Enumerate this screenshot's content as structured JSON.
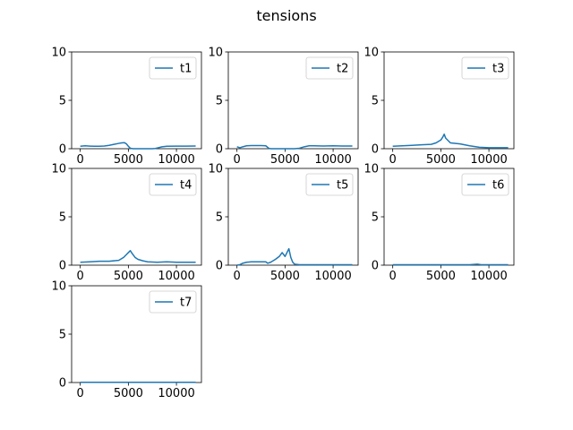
{
  "figure": {
    "title": "tensions"
  },
  "chart_data": [
    {
      "type": "line",
      "title": "",
      "xlabel": "",
      "ylabel": "",
      "xlim": [
        -900,
        12600
      ],
      "ylim": [
        0,
        10
      ],
      "xticks": [
        0,
        5000,
        10000
      ],
      "yticks": [
        0,
        5,
        10
      ],
      "legend": "top-right",
      "grid": false,
      "color": "#1f77b4",
      "series": [
        {
          "name": "t1",
          "x": [
            0,
            500,
            1000,
            1500,
            2000,
            2500,
            3000,
            3500,
            4000,
            4300,
            4600,
            4800,
            5000,
            5200,
            5500,
            6000,
            6500,
            7000,
            7500,
            7800,
            8100,
            8500,
            9000,
            10000,
            11000,
            12000
          ],
          "y": [
            0.25,
            0.3,
            0.27,
            0.25,
            0.25,
            0.28,
            0.35,
            0.45,
            0.55,
            0.6,
            0.62,
            0.5,
            0.25,
            0.05,
            0.0,
            0.0,
            0.0,
            0.0,
            0.0,
            0.02,
            0.1,
            0.2,
            0.25,
            0.27,
            0.27,
            0.28
          ]
        }
      ]
    },
    {
      "type": "line",
      "title": "",
      "xlabel": "",
      "ylabel": "",
      "xlim": [
        -900,
        12600
      ],
      "ylim": [
        0,
        10
      ],
      "xticks": [
        0,
        5000,
        10000
      ],
      "yticks": [
        0,
        5,
        10
      ],
      "legend": "top-right",
      "grid": false,
      "color": "#1f77b4",
      "series": [
        {
          "name": "t2",
          "x": [
            0,
            300,
            600,
            1000,
            1500,
            2000,
            2500,
            3000,
            3300,
            3500,
            4000,
            5000,
            6000,
            6500,
            7000,
            7500,
            8000,
            9000,
            10000,
            11000,
            12000
          ],
          "y": [
            0.2,
            0.1,
            0.2,
            0.3,
            0.32,
            0.33,
            0.33,
            0.3,
            0.05,
            0.0,
            0.0,
            0.0,
            0.0,
            0.05,
            0.2,
            0.3,
            0.3,
            0.28,
            0.3,
            0.28,
            0.28
          ]
        }
      ]
    },
    {
      "type": "line",
      "title": "",
      "xlabel": "",
      "ylabel": "",
      "xlim": [
        -900,
        12600
      ],
      "ylim": [
        0,
        10
      ],
      "xticks": [
        0,
        5000,
        10000
      ],
      "yticks": [
        0,
        5,
        10
      ],
      "legend": "top-right",
      "grid": false,
      "color": "#1f77b4",
      "series": [
        {
          "name": "t3",
          "x": [
            0,
            1000,
            2000,
            3000,
            4000,
            4500,
            5000,
            5200,
            5350,
            5500,
            5800,
            6000,
            7000,
            8000,
            9000,
            10000,
            11000,
            12000
          ],
          "y": [
            0.25,
            0.3,
            0.35,
            0.4,
            0.45,
            0.6,
            0.9,
            1.2,
            1.5,
            1.1,
            0.8,
            0.6,
            0.5,
            0.3,
            0.15,
            0.1,
            0.1,
            0.1
          ]
        }
      ]
    },
    {
      "type": "line",
      "title": "",
      "xlabel": "",
      "ylabel": "",
      "xlim": [
        -900,
        12600
      ],
      "ylim": [
        0,
        10
      ],
      "xticks": [
        0,
        5000,
        10000
      ],
      "yticks": [
        0,
        5,
        10
      ],
      "legend": "top-right",
      "grid": false,
      "color": "#1f77b4",
      "series": [
        {
          "name": "t4",
          "x": [
            0,
            1000,
            2000,
            3000,
            4000,
            4500,
            4800,
            5000,
            5200,
            5400,
            5700,
            6000,
            6500,
            7000,
            8000,
            9000,
            10000,
            11000,
            12000
          ],
          "y": [
            0.3,
            0.35,
            0.4,
            0.4,
            0.5,
            0.8,
            1.1,
            1.3,
            1.5,
            1.2,
            0.8,
            0.6,
            0.45,
            0.35,
            0.3,
            0.35,
            0.3,
            0.3,
            0.3
          ]
        }
      ]
    },
    {
      "type": "line",
      "title": "",
      "xlabel": "",
      "ylabel": "",
      "xlim": [
        -900,
        12600
      ],
      "ylim": [
        0,
        10
      ],
      "xticks": [
        0,
        5000,
        10000
      ],
      "yticks": [
        0,
        5,
        10
      ],
      "legend": "top-right",
      "grid": false,
      "color": "#1f77b4",
      "series": [
        {
          "name": "t5",
          "x": [
            0,
            300,
            600,
            1000,
            1500,
            2000,
            2500,
            3000,
            3200,
            3500,
            4000,
            4400,
            4700,
            5000,
            5200,
            5400,
            5600,
            5800,
            6000,
            6500,
            7000,
            8000,
            9000,
            10000,
            11000,
            12000
          ],
          "y": [
            0.0,
            0.05,
            0.2,
            0.3,
            0.35,
            0.35,
            0.35,
            0.35,
            0.2,
            0.3,
            0.6,
            0.9,
            1.3,
            0.9,
            1.3,
            1.7,
            0.8,
            0.3,
            0.1,
            0.05,
            0.05,
            0.05,
            0.05,
            0.05,
            0.05,
            0.05
          ]
        }
      ]
    },
    {
      "type": "line",
      "title": "",
      "xlabel": "",
      "ylabel": "",
      "xlim": [
        -900,
        12600
      ],
      "ylim": [
        0,
        10
      ],
      "xticks": [
        0,
        5000,
        10000
      ],
      "yticks": [
        0,
        5,
        10
      ],
      "legend": "top-right",
      "grid": false,
      "color": "#1f77b4",
      "series": [
        {
          "name": "t6",
          "x": [
            0,
            2000,
            4000,
            6000,
            8000,
            8800,
            9200,
            10000,
            12000
          ],
          "y": [
            0.05,
            0.05,
            0.05,
            0.05,
            0.05,
            0.1,
            0.05,
            0.05,
            0.05
          ]
        }
      ]
    },
    {
      "type": "line",
      "title": "",
      "xlabel": "",
      "ylabel": "",
      "xlim": [
        -900,
        12600
      ],
      "ylim": [
        0,
        10
      ],
      "xticks": [
        0,
        5000,
        10000
      ],
      "yticks": [
        0,
        5,
        10
      ],
      "legend": "top-right",
      "grid": false,
      "color": "#1f77b4",
      "series": [
        {
          "name": "t7",
          "x": [
            0,
            3000,
            6000,
            9000,
            12000
          ],
          "y": [
            0.02,
            0.02,
            0.02,
            0.02,
            0.02
          ]
        }
      ]
    }
  ]
}
